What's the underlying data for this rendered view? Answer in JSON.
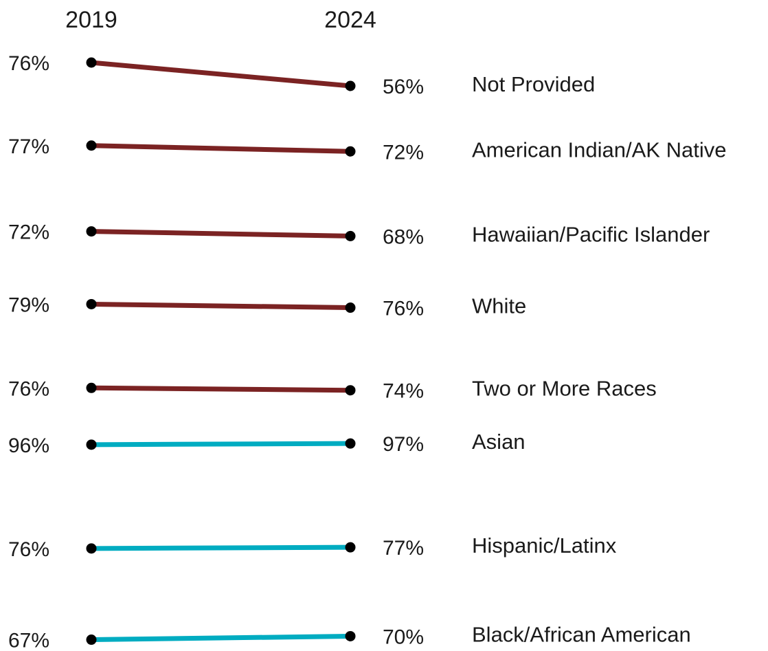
{
  "chart_data": {
    "type": "line",
    "x": [
      "2019",
      "2024"
    ],
    "series": [
      {
        "name": "Not Provided",
        "values": [
          76,
          56
        ],
        "color": "#7b2323"
      },
      {
        "name": "American Indian/AK Native",
        "values": [
          77,
          72
        ],
        "color": "#7b2323"
      },
      {
        "name": "Hawaiian/Pacific Islander",
        "values": [
          72,
          68
        ],
        "color": "#7b2323"
      },
      {
        "name": "White",
        "values": [
          79,
          76
        ],
        "color": "#7b2323"
      },
      {
        "name": "Two or More Races",
        "values": [
          76,
          74
        ],
        "color": "#7b2323"
      },
      {
        "name": "Asian",
        "values": [
          96,
          97
        ],
        "color": "#00acc1"
      },
      {
        "name": "Hispanic/Latinx",
        "values": [
          76,
          77
        ],
        "color": "#00acc1"
      },
      {
        "name": "Black/African American",
        "values": [
          67,
          70
        ],
        "color": "#00acc1"
      }
    ],
    "value_labels": [
      [
        "76%",
        "56%"
      ],
      [
        "77%",
        "72%"
      ],
      [
        "72%",
        "68%"
      ],
      [
        "79%",
        "76%"
      ],
      [
        "76%",
        "74%"
      ],
      [
        "96%",
        "97%"
      ],
      [
        "76%",
        "77%"
      ],
      [
        "67%",
        "70%"
      ]
    ],
    "legend": "labels at right end of each line",
    "grid": false,
    "marker_color": "#000000"
  }
}
